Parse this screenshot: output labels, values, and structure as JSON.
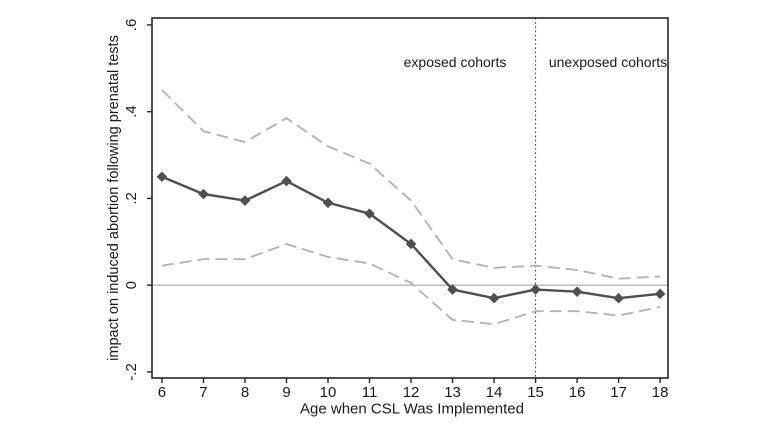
{
  "figure": {
    "background": "#ffffff",
    "annotations": {
      "exposed_label": "exposed cohorts",
      "unexposed_label": "unexposed cohorts"
    }
  },
  "colors": {
    "estimate_line": "#4f4f4f",
    "marker": "#4f4f4f",
    "ci_line": "#b4b4b4",
    "zero_line": "#9a9a9a",
    "divider_line": "#3c3c3c",
    "border": "#262626",
    "tick": "#262626",
    "text": "#1a1a1a"
  },
  "chart_data": {
    "type": "line",
    "title": "",
    "xlabel": "Age when CSL Was Implemented",
    "ylabel": "impact on induced abortion following prenatal tests",
    "x": [
      6,
      7,
      8,
      9,
      10,
      11,
      12,
      13,
      14,
      15,
      16,
      17,
      18
    ],
    "x_tick_labels": [
      "6",
      "7",
      "8",
      "9",
      "10",
      "11",
      "12",
      "13",
      "14",
      "15",
      "16",
      "17",
      "18"
    ],
    "y_tick_values": [
      0.6,
      0.4,
      0.2,
      0.0,
      -0.2
    ],
    "y_tick_labels": [
      ".6",
      ".4",
      ".2",
      "0",
      "-.2"
    ],
    "xlim": [
      5.76,
      18.19
    ],
    "ylim": [
      -0.214,
      0.616
    ],
    "grid": false,
    "legend": "none",
    "series": [
      {
        "name": "point estimate",
        "style": "solid",
        "marker": "diamond",
        "values": [
          0.25,
          0.21,
          0.195,
          0.24,
          0.19,
          0.165,
          0.095,
          -0.01,
          -0.03,
          -0.01,
          -0.015,
          -0.03,
          -0.02
        ]
      },
      {
        "name": "upper 95% confidence bound",
        "style": "dashed",
        "marker": "none",
        "values": [
          0.45,
          0.355,
          0.33,
          0.385,
          0.32,
          0.28,
          0.195,
          0.06,
          0.04,
          0.045,
          0.035,
          0.015,
          0.02
        ]
      },
      {
        "name": "lower 95% confidence bound",
        "style": "dashed",
        "marker": "none",
        "values": [
          0.045,
          0.06,
          0.06,
          0.095,
          0.065,
          0.05,
          0.005,
          -0.08,
          -0.09,
          -0.06,
          -0.06,
          -0.07,
          -0.05
        ]
      }
    ],
    "reference_lines": {
      "horizontal_y": 0,
      "vertical_x": 15,
      "vertical_style": "dotted"
    }
  }
}
